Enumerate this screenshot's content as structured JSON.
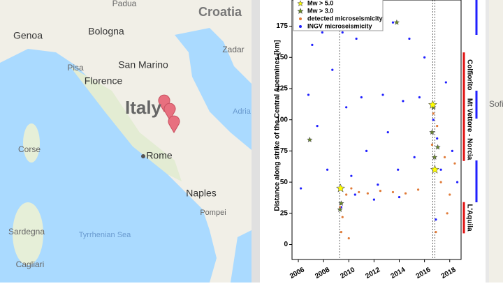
{
  "map": {
    "labels": [
      "Padua",
      "Croatia",
      "Genoa",
      "Bologna",
      "Zadar",
      "San Marino",
      "Pisa",
      "Florence",
      "Italy",
      "Adria",
      "Corse",
      "Rome",
      "Naples",
      "Pompei",
      "Sardegna",
      "Tyrrhenian Sea",
      "Cagliari"
    ]
  },
  "chart_data": {
    "type": "scatter",
    "y_label": "Distance along strike of the Central Apennines [km]",
    "xlim": [
      2005.5,
      2018.9
    ],
    "xticks": [
      2006,
      2008,
      2010,
      2012,
      2014,
      2016,
      2018
    ],
    "ylim": [
      -12,
      196
    ],
    "yticks": [
      0,
      25,
      50,
      75,
      100,
      125,
      150,
      175
    ],
    "grid": false,
    "reference_lines_x": [
      2009.27,
      2016.65,
      2016.82
    ],
    "annotations": [
      {
        "text": "Colfiorito",
        "ylim": [
          118,
          154
        ]
      },
      {
        "text": "Mt Vettore - Norcia",
        "ylim": [
          67,
          118
        ]
      },
      {
        "text": "L'Aquila",
        "ylim": [
          9,
          34
        ]
      }
    ],
    "series": [
      {
        "name": "INGV microseismicity",
        "color": "#1f1fff",
        "marker": "dot",
        "x": [
          2006.2,
          2006.8,
          2007.1,
          2007.5,
          2007.9,
          2008.3,
          2008.7,
          2009.5,
          2009.8,
          2010.2,
          2010.6,
          2011.0,
          2011.4,
          2011.9,
          2012.3,
          2012.7,
          2013.1,
          2013.5,
          2013.9,
          2014.3,
          2014.8,
          2015.2,
          2015.6,
          2016.0,
          2016.7,
          2017.0,
          2017.3,
          2017.7,
          2018.2,
          2018.6,
          2009.4,
          2010.5,
          2012.0,
          2014.0,
          2016.9
        ],
        "values": [
          45,
          120,
          160,
          95,
          170,
          60,
          140,
          170,
          110,
          55,
          165,
          118,
          75,
          172,
          48,
          120,
          90,
          178,
          60,
          115,
          165,
          70,
          118,
          150,
          100,
          85,
          60,
          130,
          75,
          50,
          30,
          40,
          36,
          38,
          20
        ]
      },
      {
        "name": "detected microseismicity",
        "color": "#e07b39",
        "marker": "dot",
        "x": [
          2009.3,
          2009.5,
          2009.8,
          2010.2,
          2010.8,
          2011.5,
          2012.5,
          2013.5,
          2014.5,
          2015.5,
          2016.6,
          2016.8,
          2017.0,
          2017.3,
          2017.6,
          2018.0,
          2018.4,
          2009.4,
          2010.0,
          2016.9,
          2017.8,
          2016.7
        ],
        "values": [
          30,
          22,
          40,
          45,
          42,
          41,
          43,
          42,
          41,
          44,
          80,
          60,
          95,
          50,
          70,
          40,
          65,
          10,
          5,
          10,
          25,
          105
        ]
      },
      {
        "name": "Mw > 3.0",
        "color": "#6b8e23",
        "marker": "star",
        "x": [
          2006.9,
          2009.3,
          2009.4,
          2016.6,
          2016.8,
          2017.05,
          2013.8,
          2016.7
        ],
        "values": [
          84,
          28,
          33,
          90,
          70,
          78,
          178,
          110
        ]
      },
      {
        "name": "Mw > 5.0",
        "color": "#ffff00",
        "marker": "bigstar",
        "x": [
          2009.35,
          2016.65,
          2016.82
        ],
        "values": [
          45,
          112,
          60
        ]
      }
    ]
  },
  "right_strip": {
    "labels": [
      "Sofi"
    ]
  }
}
